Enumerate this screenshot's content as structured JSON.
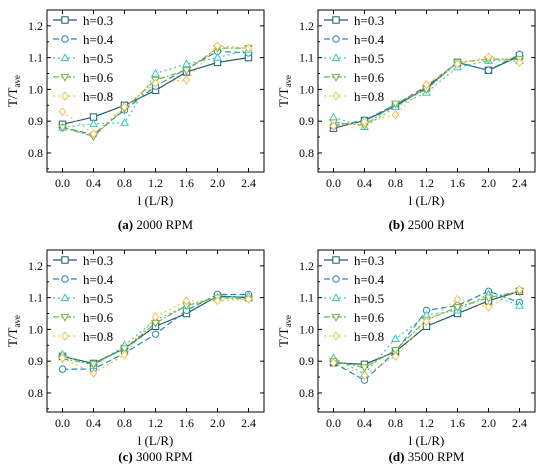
{
  "figure": {
    "style": {
      "series_colors": [
        "#1f5c6b",
        "#2a8aa6",
        "#3cc7c4",
        "#7cb342",
        "#f2c14e"
      ],
      "series_dash": [
        "",
        "6,3",
        "2,3",
        "6,2,2,2",
        "2,3"
      ],
      "series_markers": [
        "square",
        "circle",
        "triangle",
        "triangle-down",
        "diamond"
      ]
    }
  },
  "chart_data": [
    {
      "type": "line",
      "caption_tag": "(a)",
      "caption_text": "2000 RPM",
      "xlabel": "l (L/R)",
      "ylabel_main": "T/T",
      "ylabel_sub": "ave",
      "x": [
        0.0,
        0.4,
        0.8,
        1.2,
        1.6,
        2.0,
        2.4
      ],
      "xticks": [
        "0.0",
        "0.4",
        "0.8",
        "1.2",
        "1.6",
        "2.0",
        "2.4"
      ],
      "yticks": [
        "0.8",
        "0.9",
        "1.0",
        "1.1",
        "1.2"
      ],
      "xlim": [
        -0.2,
        2.6
      ],
      "ylim": [
        0.74,
        1.25
      ],
      "legend_position": "top-left",
      "series": [
        {
          "name": "h=0.3",
          "values": [
            0.89,
            0.913,
            0.95,
            0.997,
            1.055,
            1.085,
            1.1
          ]
        },
        {
          "name": "h=0.4",
          "values": [
            0.88,
            0.858,
            0.935,
            1.01,
            1.065,
            1.12,
            1.115
          ]
        },
        {
          "name": "h=0.5",
          "values": [
            0.88,
            0.892,
            0.895,
            1.05,
            1.08,
            1.1,
            1.125
          ]
        },
        {
          "name": "h=0.6",
          "values": [
            0.88,
            0.852,
            0.94,
            1.03,
            1.06,
            1.13,
            1.13
          ]
        },
        {
          "name": "h=0.8",
          "values": [
            0.93,
            0.86,
            0.945,
            1.02,
            1.03,
            1.137,
            1.13
          ]
        }
      ]
    },
    {
      "type": "line",
      "caption_tag": "(b)",
      "caption_text": "2500 RPM",
      "xlabel": "l (L/R)",
      "ylabel_main": "T/T",
      "ylabel_sub": "ave",
      "x": [
        0.0,
        0.4,
        0.8,
        1.2,
        1.6,
        2.0,
        2.4
      ],
      "xticks": [
        "0.0",
        "0.4",
        "0.8",
        "1.2",
        "1.6",
        "2.0",
        "2.4"
      ],
      "yticks": [
        "0.8",
        "0.9",
        "1.0",
        "1.1",
        "1.2"
      ],
      "xlim": [
        -0.2,
        2.6
      ],
      "ylim": [
        0.74,
        1.25
      ],
      "legend_position": "top-left",
      "series": [
        {
          "name": "h=0.3",
          "values": [
            0.878,
            0.902,
            0.948,
            1.005,
            1.085,
            1.06,
            1.105
          ]
        },
        {
          "name": "h=0.4",
          "values": [
            0.885,
            0.903,
            0.952,
            1.01,
            1.085,
            1.06,
            1.11
          ]
        },
        {
          "name": "h=0.5",
          "values": [
            0.912,
            0.882,
            0.945,
            0.99,
            1.07,
            1.09,
            1.09
          ]
        },
        {
          "name": "h=0.6",
          "values": [
            0.896,
            0.887,
            0.955,
            1.0,
            1.085,
            1.095,
            1.095
          ]
        },
        {
          "name": "h=0.8",
          "values": [
            0.885,
            0.897,
            0.92,
            1.015,
            1.08,
            1.103,
            1.085
          ]
        }
      ]
    },
    {
      "type": "line",
      "caption_tag": "(c)",
      "caption_text": "3000 RPM",
      "xlabel": "l (L/R)",
      "ylabel_main": "T/T",
      "ylabel_sub": "ave",
      "x": [
        0.0,
        0.4,
        0.8,
        1.2,
        1.6,
        2.0,
        2.4
      ],
      "xticks": [
        "0.0",
        "0.4",
        "0.8",
        "1.2",
        "1.6",
        "2.0",
        "2.4"
      ],
      "yticks": [
        "0.8",
        "0.9",
        "1.0",
        "1.1",
        "1.2"
      ],
      "xlim": [
        -0.2,
        2.6
      ],
      "ylim": [
        0.74,
        1.25
      ],
      "legend_position": "top-left",
      "series": [
        {
          "name": "h=0.3",
          "values": [
            0.915,
            0.893,
            0.94,
            1.01,
            1.05,
            1.105,
            1.1
          ]
        },
        {
          "name": "h=0.4",
          "values": [
            0.875,
            0.875,
            0.925,
            0.985,
            1.06,
            1.11,
            1.11
          ]
        },
        {
          "name": "h=0.5",
          "values": [
            0.92,
            0.885,
            0.95,
            1.03,
            1.075,
            1.1,
            1.105
          ]
        },
        {
          "name": "h=0.6",
          "values": [
            0.908,
            0.89,
            0.94,
            1.02,
            1.075,
            1.1,
            1.095
          ]
        },
        {
          "name": "h=0.8",
          "values": [
            0.91,
            0.862,
            0.92,
            1.04,
            1.09,
            1.09,
            1.095
          ]
        }
      ]
    },
    {
      "type": "line",
      "caption_tag": "(d)",
      "caption_text": "3500 RPM",
      "xlabel": "l (L/R)",
      "ylabel_main": "T/T",
      "ylabel_sub": "ave",
      "x": [
        0.0,
        0.4,
        0.8,
        1.2,
        1.6,
        2.0,
        2.4
      ],
      "xticks": [
        "0.0",
        "0.4",
        "0.8",
        "1.2",
        "1.6",
        "2.0",
        "2.4"
      ],
      "yticks": [
        "0.8",
        "0.9",
        "1.0",
        "1.1",
        "1.2"
      ],
      "xlim": [
        -0.2,
        2.6
      ],
      "ylim": [
        0.74,
        1.25
      ],
      "legend_position": "top-left",
      "series": [
        {
          "name": "h=0.3",
          "values": [
            0.895,
            0.89,
            0.93,
            1.01,
            1.05,
            1.09,
            1.12
          ]
        },
        {
          "name": "h=0.4",
          "values": [
            0.895,
            0.84,
            0.93,
            1.06,
            1.075,
            1.12,
            1.085
          ]
        },
        {
          "name": "h=0.5",
          "values": [
            0.91,
            0.86,
            0.97,
            1.045,
            1.06,
            1.11,
            1.075
          ]
        },
        {
          "name": "h=0.6",
          "values": [
            0.9,
            0.88,
            0.935,
            1.03,
            1.07,
            1.1,
            1.12
          ]
        },
        {
          "name": "h=0.8",
          "values": [
            0.895,
            0.855,
            0.915,
            1.025,
            1.095,
            1.07,
            1.125
          ]
        }
      ]
    }
  ]
}
